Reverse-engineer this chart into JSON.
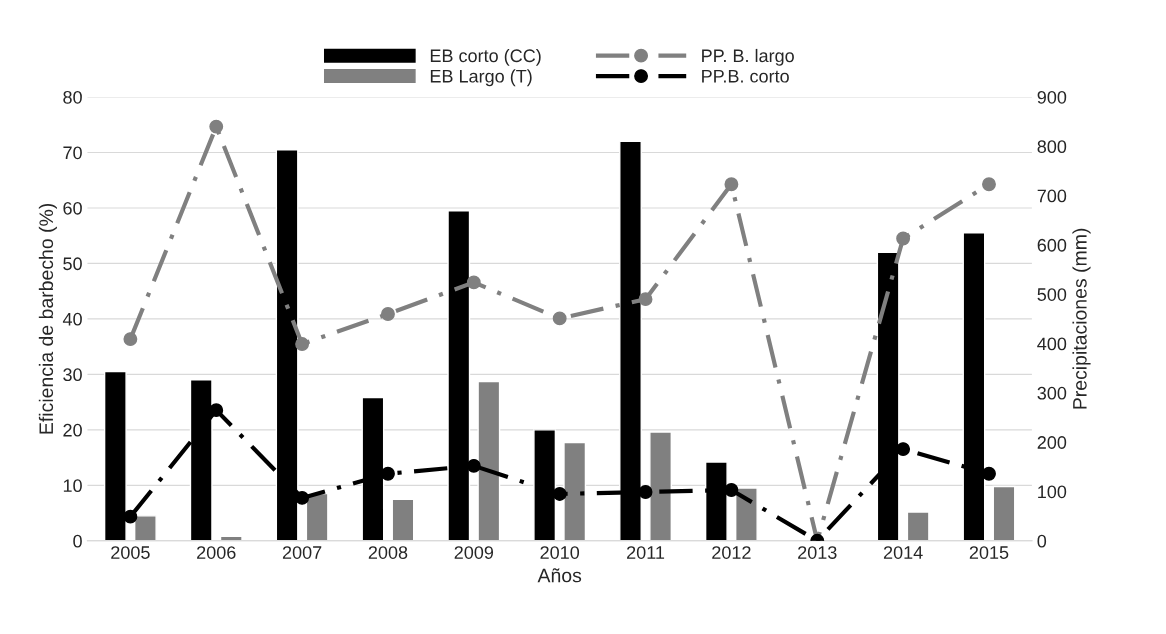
{
  "chart_data": {
    "type": "bar",
    "xlabel": "Años",
    "ylabel": "Eficiencia de barbecho (%)",
    "y2label": "Precipitaciones (mm)",
    "categories": [
      "2005",
      "2006",
      "2007",
      "2008",
      "2009",
      "2010",
      "2011",
      "2012",
      "2013",
      "2014",
      "2015"
    ],
    "series": [
      {
        "name": "EB corto (CC)",
        "color": "#000000",
        "values": [
          30.5,
          29,
          70.5,
          25.8,
          59.5,
          20,
          72,
          14.2,
          null,
          52,
          55.5
        ]
      },
      {
        "name": "EB Largo (T)",
        "color": "#808080",
        "values": [
          4.5,
          0.8,
          8.5,
          7.5,
          28.7,
          17.7,
          19.6,
          9.5,
          null,
          5.2,
          9.8
        ]
      },
      {
        "name": "PP. B. largo",
        "type": "line",
        "axis": "y2",
        "color": "#808080",
        "marker": "circle",
        "line_style": "dashed",
        "values": [
          409,
          840,
          399,
          460,
          524,
          451,
          490,
          723,
          0,
          613,
          723
        ]
      },
      {
        "name": "PP.B. corto",
        "type": "line",
        "axis": "y2",
        "color": "#000000",
        "marker": "circle",
        "line_style": "dashed",
        "values": [
          49,
          265,
          87,
          136,
          152,
          95,
          99,
          103,
          0,
          186,
          136
        ]
      }
    ],
    "ylim": [
      0,
      80
    ],
    "yticks": [
      0,
      10,
      20,
      30,
      40,
      50,
      60,
      70,
      80
    ],
    "y2lim": [
      0,
      900
    ],
    "y2ticks": [
      0,
      100,
      200,
      300,
      400,
      500,
      600,
      700,
      800,
      900
    ],
    "grid": "y",
    "legend": "top"
  }
}
